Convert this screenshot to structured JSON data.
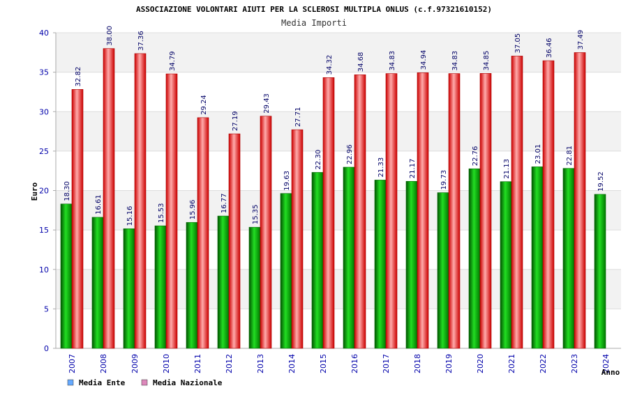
{
  "chart_data": {
    "type": "bar",
    "title": "ASSOCIAZIONE VOLONTARI AIUTI PER LA SCLEROSI MULTIPLA ONLUS (c.f.97321610152)",
    "subtitle": "Media Importi",
    "xlabel": "Anno",
    "ylabel": "Euro",
    "ylim": [
      0,
      40
    ],
    "yticks": [
      0,
      5,
      10,
      15,
      20,
      25,
      30,
      35,
      40
    ],
    "grid": true,
    "legend_position": "bottom-left",
    "categories": [
      "2007",
      "2008",
      "2009",
      "2010",
      "2011",
      "2012",
      "2013",
      "2014",
      "2015",
      "2016",
      "2017",
      "2018",
      "2019",
      "2020",
      "2021",
      "2022",
      "2023",
      "2024"
    ],
    "series": [
      {
        "name": "Media Ente",
        "color": "#00aa00",
        "legend_color": "#66aaff",
        "values": [
          18.3,
          16.61,
          15.16,
          15.53,
          15.96,
          16.77,
          15.35,
          19.63,
          22.3,
          22.96,
          21.33,
          21.17,
          19.73,
          22.76,
          21.13,
          23.01,
          22.81,
          19.52
        ],
        "labels": [
          "18.30",
          "16.61",
          "15.16",
          "15.53",
          "15.96",
          "16.77",
          "15.35",
          "19.63",
          "22.30",
          "22.96",
          "21.33",
          "21.17",
          "19.73",
          "22.76",
          "21.13",
          "23.01",
          "22.81",
          "19.52"
        ]
      },
      {
        "name": "Media Nazionale",
        "color": "#dd0000",
        "legend_color": "#dd88bb",
        "values": [
          32.82,
          38.0,
          37.36,
          34.79,
          29.24,
          27.19,
          29.43,
          27.71,
          34.32,
          34.68,
          34.83,
          34.94,
          34.83,
          34.85,
          37.05,
          36.46,
          37.49,
          null
        ],
        "labels": [
          "32.82",
          "38.00",
          "37.36",
          "34.79",
          "29.24",
          "27.19",
          "29.43",
          "27.71",
          "34.32",
          "34.68",
          "34.83",
          "34.94",
          "34.83",
          "34.85",
          "37.05",
          "36.46",
          "37.49",
          ""
        ]
      }
    ]
  }
}
